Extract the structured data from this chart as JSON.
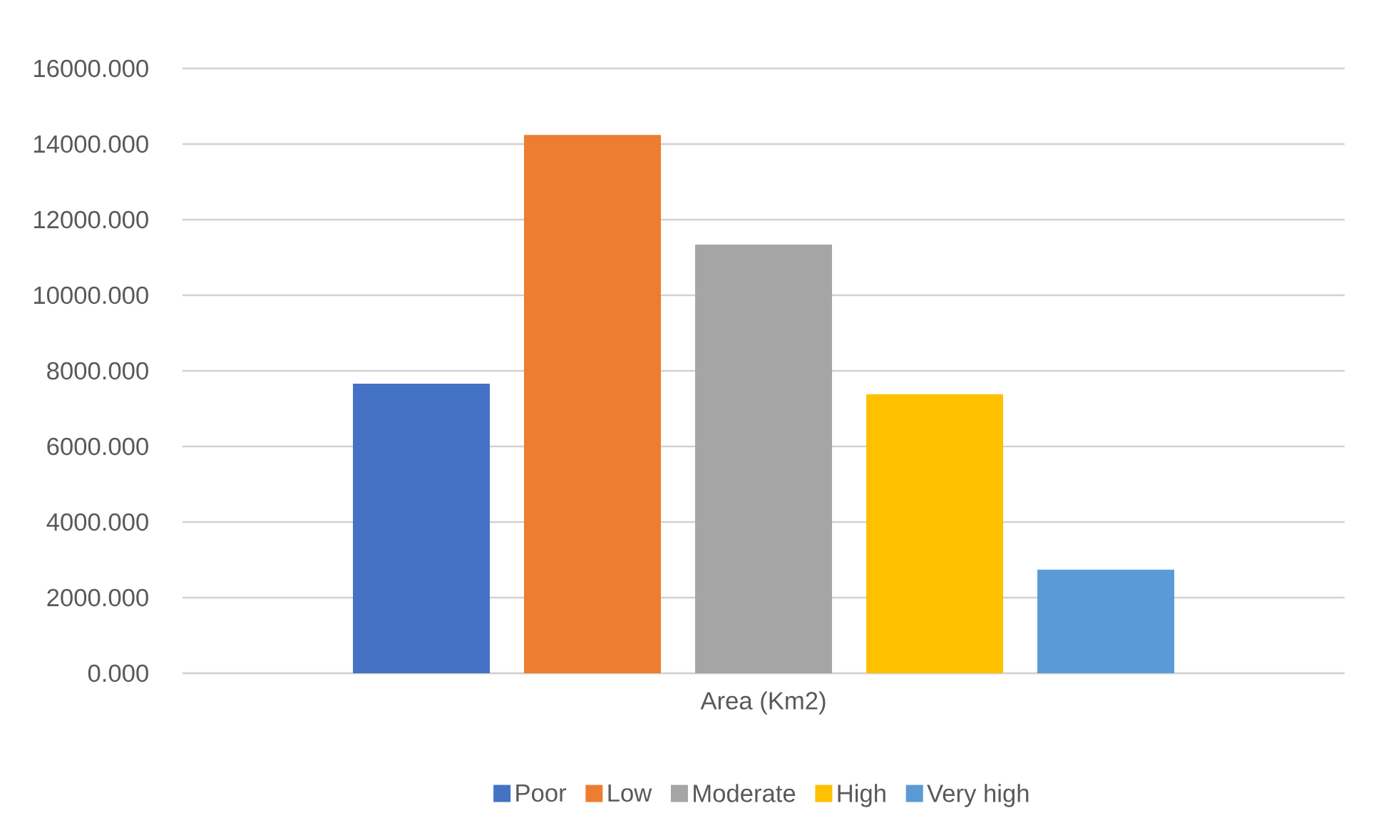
{
  "chart_data": {
    "type": "bar",
    "categories": [
      "Area (Km2)"
    ],
    "series": [
      {
        "name": "Poor",
        "color": "#4472c4",
        "values": [
          7660
        ]
      },
      {
        "name": "Low",
        "color": "#ed7d31",
        "values": [
          14240
        ]
      },
      {
        "name": "Moderate",
        "color": "#a5a5a5",
        "values": [
          11340
        ]
      },
      {
        "name": "High",
        "color": "#ffc000",
        "values": [
          7380
        ]
      },
      {
        "name": "Very high",
        "color": "#5b9bd5",
        "values": [
          2740
        ]
      }
    ],
    "ylim": [
      0,
      16000
    ],
    "yticks": [
      {
        "value": 0,
        "label": "0.000"
      },
      {
        "value": 2000,
        "label": "2000.000"
      },
      {
        "value": 4000,
        "label": "4000.000"
      },
      {
        "value": 6000,
        "label": "6000.000"
      },
      {
        "value": 8000,
        "label": "8000.000"
      },
      {
        "value": 10000,
        "label": "10000.000"
      },
      {
        "value": 12000,
        "label": "12000.000"
      },
      {
        "value": 14000,
        "label": "14000.000"
      },
      {
        "value": 16000,
        "label": "16000.000"
      }
    ],
    "grid": "y",
    "legend": "bottom"
  }
}
